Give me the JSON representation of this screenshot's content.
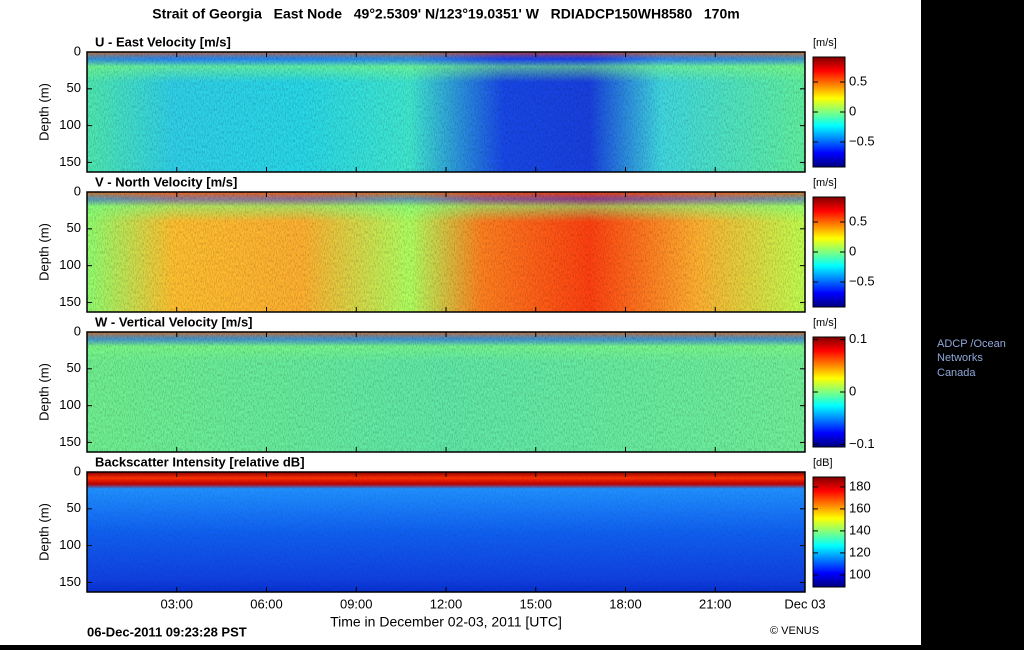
{
  "title": "Strait of Georgia   East Node   49°2.5309' N/123°19.0351' W   RDIADCP150WH8580   170m",
  "ylabel": "Depth (m)",
  "xlabel": "Time in December 02-03, 2011 [UTC]",
  "xlim": [
    0,
    24
  ],
  "xticks": [
    {
      "value": 3,
      "label": "03:00"
    },
    {
      "value": 6,
      "label": "06:00"
    },
    {
      "value": 9,
      "label": "09:00"
    },
    {
      "value": 12,
      "label": "12:00"
    },
    {
      "value": 15,
      "label": "15:00"
    },
    {
      "value": 18,
      "label": "18:00"
    },
    {
      "value": 21,
      "label": "21:00"
    },
    {
      "value": 24,
      "label": "Dec 03"
    }
  ],
  "panels": [
    {
      "title": "U - East Velocity  [m/s]",
      "unit": "[m/s]",
      "ylim": [
        0,
        163
      ],
      "yticks": [
        0,
        50,
        100,
        150
      ],
      "clim": [
        -0.917,
        0.917
      ],
      "cticks": [
        0.5,
        0,
        {
          "value": -0.5,
          "label": "−0.5"
        }
      ]
    },
    {
      "title": "V - North Velocity  [m/s]",
      "unit": "[m/s]",
      "ylim": [
        0,
        163
      ],
      "yticks": [
        0,
        50,
        100,
        150
      ],
      "clim": [
        -0.917,
        0.917
      ],
      "cticks": [
        0.5,
        0,
        {
          "value": -0.5,
          "label": "−0.5"
        }
      ]
    },
    {
      "title": "W - Vertical Velocity  [m/s]",
      "unit": "[m/s]",
      "ylim": [
        0,
        163
      ],
      "yticks": [
        0,
        50,
        100,
        150
      ],
      "clim": [
        -0.105,
        0.105
      ],
      "cticks": [
        0.1,
        0,
        {
          "value": -0.1,
          "label": "−0.1"
        }
      ]
    },
    {
      "title": "Backscatter Intensity [relative dB]",
      "unit": "[dB]",
      "ylim": [
        0,
        163
      ],
      "yticks": [
        0,
        50,
        100,
        150
      ],
      "clim": [
        89,
        189
      ],
      "cticks": [
        180,
        160,
        140,
        120,
        100
      ]
    }
  ],
  "timestamp": "06-Dec-2011 09:23:28 PST",
  "credit": "© VENUS",
  "side_note": [
    "ADCP /Ocean",
    "Networks",
    "Canada"
  ]
}
